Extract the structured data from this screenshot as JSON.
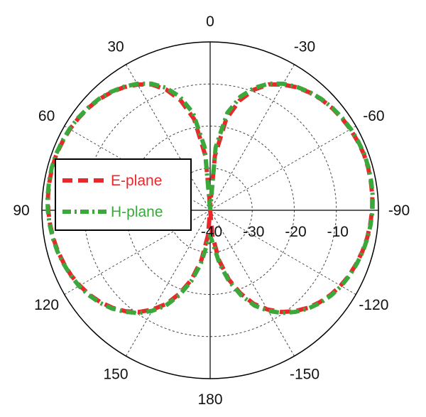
{
  "chart_data": {
    "type": "polar-line",
    "radial_axis": {
      "min": -40,
      "max": 0,
      "ticks": [
        -40,
        -30,
        -20,
        -10
      ],
      "tick_labels": [
        "-40",
        "-30",
        "-20",
        "-10"
      ]
    },
    "angular_axis": {
      "direction": "counterclockwise",
      "zero_at": "top",
      "ticks": [
        0,
        30,
        60,
        90,
        120,
        150,
        180,
        -150,
        -120,
        -90,
        -60,
        -30
      ],
      "tick_labels": [
        "0",
        "30",
        "60",
        "90",
        "120",
        "150",
        "180",
        "-150",
        "-120",
        "-90",
        "-60",
        "-30"
      ]
    },
    "grid": true,
    "legend": {
      "position": "left",
      "entries": [
        "E-plane",
        "H-plane"
      ]
    },
    "series": [
      {
        "name": "E-plane",
        "color": "#e8292b",
        "style": "dashed",
        "theta": [
          0,
          5,
          10,
          15,
          20,
          25,
          30,
          35,
          40,
          45,
          50,
          55,
          60,
          65,
          70,
          75,
          80,
          85,
          90,
          95,
          100,
          105,
          110,
          115,
          120,
          125,
          130,
          135,
          140,
          145,
          150,
          155,
          160,
          165,
          170,
          175,
          180,
          -175,
          -170,
          -165,
          -160,
          -155,
          -150,
          -145,
          -140,
          -135,
          -130,
          -125,
          -120,
          -115,
          -110,
          -105,
          -100,
          -95,
          -90,
          -85,
          -80,
          -75,
          -70,
          -65,
          -60,
          -55,
          -50,
          -45,
          -40,
          -35,
          -30,
          -25,
          -20,
          -15,
          -10,
          -5
        ],
        "r": [
          -39,
          -27,
          -18,
          -13,
          -9.5,
          -7,
          -5.5,
          -4.3,
          -3.4,
          -2.7,
          -2.2,
          -1.8,
          -1.5,
          -1.3,
          -1.1,
          -1.1,
          -1.2,
          -1.3,
          -1.5,
          -1.8,
          -2.1,
          -2.5,
          -3,
          -3.5,
          -4.2,
          -5,
          -6,
          -7.2,
          -8.7,
          -10.5,
          -12.8,
          -15.5,
          -19,
          -23,
          -28,
          -34,
          -40,
          -34,
          -28,
          -23,
          -19,
          -15.5,
          -12.8,
          -10.5,
          -8.7,
          -7.2,
          -6,
          -5,
          -4.2,
          -3.5,
          -3,
          -2.5,
          -2.1,
          -1.8,
          -1.5,
          -1.3,
          -1.2,
          -1.1,
          -1.1,
          -1.3,
          -1.5,
          -1.8,
          -2.2,
          -2.7,
          -3.4,
          -4.3,
          -5.5,
          -7,
          -9.5,
          -13,
          -18,
          -27
        ]
      },
      {
        "name": "H-plane",
        "color": "#3aa83a",
        "style": "dashdot",
        "theta": [
          0,
          5,
          10,
          15,
          20,
          25,
          30,
          35,
          40,
          45,
          50,
          55,
          60,
          65,
          70,
          75,
          80,
          85,
          90,
          95,
          100,
          105,
          110,
          115,
          120,
          125,
          130,
          135,
          140,
          145,
          150,
          155,
          160,
          165,
          170,
          175,
          180,
          -175,
          -170,
          -165,
          -160,
          -155,
          -150,
          -145,
          -140,
          -135,
          -130,
          -125,
          -120,
          -115,
          -110,
          -105,
          -100,
          -95,
          -90,
          -85,
          -80,
          -75,
          -70,
          -65,
          -60,
          -55,
          -50,
          -45,
          -40,
          -35,
          -30,
          -25,
          -20,
          -15,
          -10,
          -5
        ],
        "r": [
          -40,
          -25,
          -16.5,
          -12,
          -9,
          -6.8,
          -5.3,
          -4.2,
          -3.3,
          -2.6,
          -2.1,
          -1.7,
          -1.4,
          -1.2,
          -1.0,
          -1.0,
          -1.1,
          -1.2,
          -1.4,
          -1.7,
          -2.0,
          -2.4,
          -2.9,
          -3.4,
          -4.0,
          -4.8,
          -5.8,
          -7.0,
          -8.5,
          -10.2,
          -12.4,
          -15,
          -18.5,
          -22.5,
          -27,
          -32,
          -34,
          -32,
          -27,
          -22.5,
          -18.5,
          -15,
          -12.4,
          -10.2,
          -8.5,
          -7.0,
          -5.8,
          -4.8,
          -4.0,
          -3.4,
          -2.9,
          -2.4,
          -2.0,
          -1.7,
          -1.4,
          -1.2,
          -1.1,
          -1.0,
          -1.0,
          -1.2,
          -1.4,
          -1.7,
          -2.1,
          -2.6,
          -3.3,
          -4.2,
          -5.3,
          -6.8,
          -9,
          -12,
          -16.5,
          -25
        ]
      }
    ]
  }
}
